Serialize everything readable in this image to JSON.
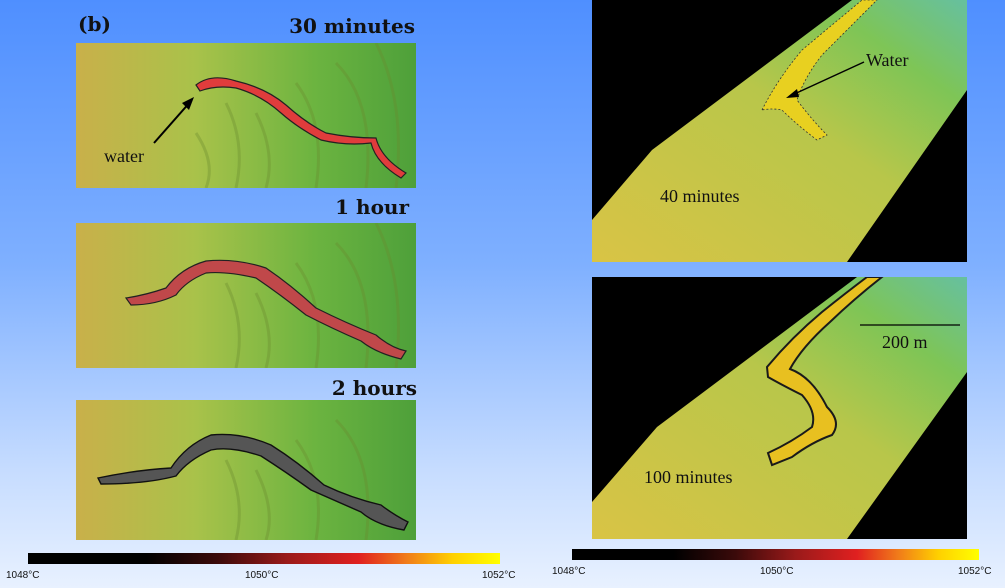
{
  "left": {
    "panel_letter": "(b)",
    "panels": [
      {
        "time_label": "30 minutes",
        "annotation": "water"
      },
      {
        "time_label": "1 hour"
      },
      {
        "time_label": "2 hours"
      }
    ],
    "colorbar": {
      "min_label": "1048°C",
      "mid_label": "1050°C",
      "max_label": "1052°C"
    }
  },
  "right": {
    "panels": [
      {
        "time_label": "40 minutes",
        "annotation": "Water"
      },
      {
        "time_label": "100 minutes",
        "scale_label": "200 m"
      }
    ],
    "colorbar": {
      "min_label": "1048°C",
      "mid_label": "1050°C",
      "max_label": "1052°C"
    }
  },
  "colors": {
    "terrain_low": "#c9b04a",
    "terrain_high": "#5aa83c",
    "lava_hot": "#e03c3c",
    "lava_cool": "#333333",
    "background_top": "#4f8fff"
  }
}
